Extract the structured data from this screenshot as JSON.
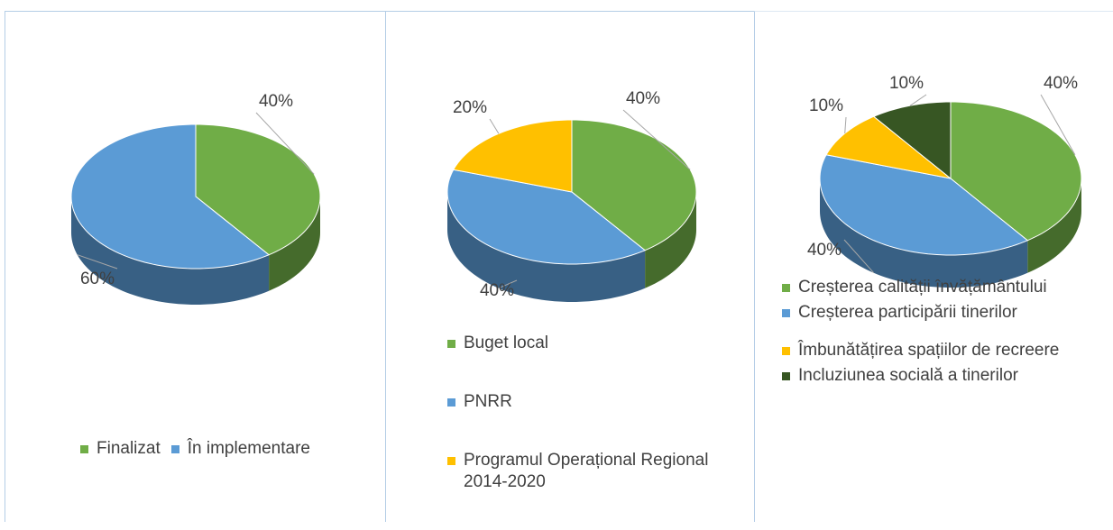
{
  "chart_data": [
    {
      "type": "pie",
      "categories": [
        "Finalizat",
        "În implementare"
      ],
      "values": [
        40,
        60
      ],
      "value_labels": [
        "40%",
        "60%"
      ],
      "colors": [
        "#70ad47",
        "#5b9bd5"
      ]
    },
    {
      "type": "pie",
      "categories": [
        "Buget local",
        "PNRR",
        "Programul Operațional Regional 2014-2020"
      ],
      "values": [
        40,
        40,
        20
      ],
      "value_labels": [
        "40%",
        "40%",
        "20%"
      ],
      "colors": [
        "#70ad47",
        "#5b9bd5",
        "#ffc000"
      ]
    },
    {
      "type": "pie",
      "categories": [
        "Creșterea calității învățământului",
        "Creșterea participării tinerilor",
        "Îmbunătățirea spațiilor de recreere",
        "Incluziunea socială a tinerilor"
      ],
      "values": [
        40,
        40,
        10,
        10
      ],
      "value_labels": [
        "40%",
        "40%",
        "10%",
        "10%"
      ],
      "colors": [
        "#70ad47",
        "#5b9bd5",
        "#ffc000",
        "#375623"
      ]
    }
  ]
}
